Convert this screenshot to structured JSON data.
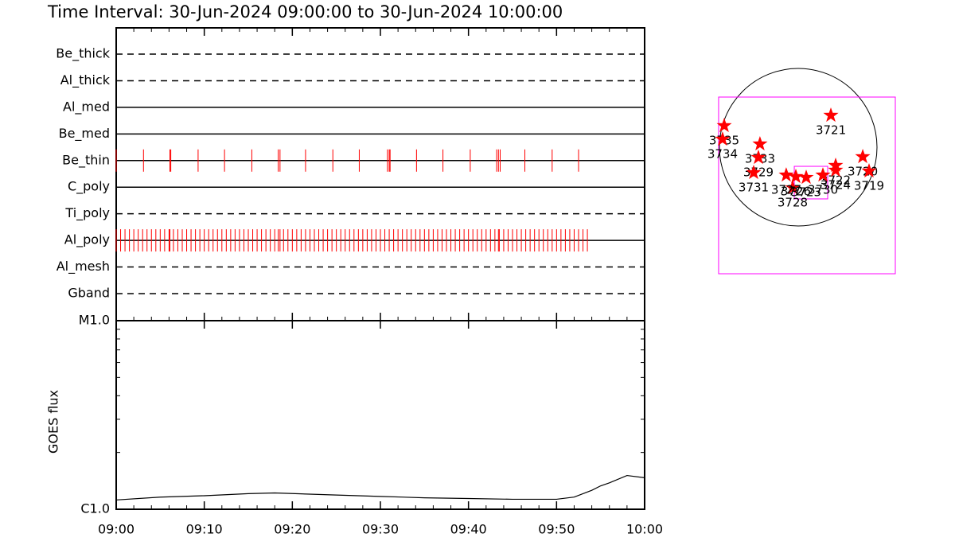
{
  "chart_data": [
    {
      "type": "timeline",
      "title": "Time Interval: 30-Jun-2024 09:00:00 to 30-Jun-2024 10:00:00",
      "xlim": [
        0,
        60
      ],
      "color": "#ff0000",
      "rows": [
        {
          "name": "Be_thick",
          "style": "dashed",
          "obs": []
        },
        {
          "name": "Al_thick",
          "style": "dashed",
          "obs": []
        },
        {
          "name": "Al_med",
          "style": "solid",
          "obs": []
        },
        {
          "name": "Be_med",
          "style": "solid",
          "obs": []
        },
        {
          "name": "Be_thin",
          "style": "solid",
          "obs": [
            0,
            3.1,
            6.1,
            6.2,
            9.3,
            12.3,
            15.4,
            18.4,
            18.6,
            21.5,
            24.6,
            27.6,
            30.8,
            31.0,
            31.1,
            34.1,
            37.1,
            40.2,
            43.2,
            43.4,
            43.6,
            46.4,
            49.5,
            52.5
          ]
        },
        {
          "name": "C_poly",
          "style": "solid",
          "obs": []
        },
        {
          "name": "Ti_poly",
          "style": "dashed",
          "obs": []
        },
        {
          "name": "Al_poly",
          "style": "solid",
          "obs": [
            0,
            0.5,
            1,
            1.5,
            2,
            2.5,
            3,
            3.5,
            4,
            4.5,
            5,
            5.5,
            6,
            6.1,
            6.5,
            7,
            7.5,
            8,
            8.5,
            9,
            9.5,
            10,
            10.5,
            11,
            11.5,
            12,
            12.5,
            13,
            13.5,
            14,
            14.5,
            15,
            15.5,
            16,
            16.5,
            17,
            17.5,
            18,
            18.4,
            18.6,
            19,
            19.5,
            20,
            20.5,
            21,
            21.5,
            22,
            22.5,
            23,
            23.5,
            24,
            24.5,
            25,
            25.5,
            26,
            26.5,
            27,
            27.5,
            28,
            28.5,
            29,
            29.5,
            30,
            30.5,
            31,
            31.5,
            32,
            32.5,
            33,
            33.5,
            34,
            34.5,
            35,
            35.5,
            36,
            36.5,
            37,
            37.5,
            38,
            38.5,
            39,
            39.5,
            40,
            40.5,
            41,
            41.5,
            42,
            42.5,
            43,
            43.4,
            43.5,
            44,
            44.5,
            45,
            45.5,
            46,
            46.5,
            47,
            47.5,
            48,
            48.5,
            49,
            49.5,
            50,
            50.5,
            51,
            51.5,
            52,
            52.5,
            53,
            53.5
          ]
        },
        {
          "name": "Al_mesh",
          "style": "dashed",
          "obs": []
        },
        {
          "name": "Gband",
          "style": "dashed",
          "obs": []
        }
      ]
    },
    {
      "type": "line",
      "ylabel": "GOES flux",
      "log": true,
      "color": "#000000",
      "x": [
        0,
        5,
        10,
        15,
        18,
        25,
        30,
        35,
        40,
        45,
        50,
        52,
        54,
        55,
        56,
        58,
        60
      ],
      "values": [
        1.12e-06,
        1.16e-06,
        1.18e-06,
        1.21e-06,
        1.22e-06,
        1.19e-06,
        1.17e-06,
        1.15e-06,
        1.14e-06,
        1.13e-06,
        1.13e-06,
        1.16e-06,
        1.26e-06,
        1.33e-06,
        1.38e-06,
        1.51e-06,
        1.47e-06
      ],
      "xlim": [
        0,
        60
      ],
      "xticks": [
        {
          "value": 0,
          "label": "09:00"
        },
        {
          "value": 10,
          "label": "09:10"
        },
        {
          "value": 20,
          "label": "09:20"
        },
        {
          "value": 30,
          "label": "09:30"
        },
        {
          "value": 40,
          "label": "09:40"
        },
        {
          "value": 50,
          "label": "09:50"
        },
        {
          "value": 60,
          "label": "10:00"
        }
      ],
      "ylim": [
        1e-06,
        1e-05
      ],
      "yticks": [
        {
          "value": 1e-06,
          "label": "C1.0"
        },
        {
          "value": 1e-05,
          "label": "M1.0"
        }
      ]
    },
    {
      "type": "map",
      "radius": 960,
      "color": "#ff0000",
      "box_color": "#ff00ff",
      "fov": [
        [
          -970,
          611,
          1183,
          -1542
        ],
        [
          -48,
          -233,
          359,
          -630
        ]
      ],
      "regions": [
        {
          "name": "3721",
          "x": 398,
          "y": 388
        },
        {
          "name": "3735",
          "x": -902,
          "y": 262
        },
        {
          "name": "3734",
          "x": -922,
          "y": 97
        },
        {
          "name": "3733",
          "x": -466,
          "y": 39
        },
        {
          "name": "3729",
          "x": -485,
          "y": -126
        },
        {
          "name": "3731",
          "x": -543,
          "y": -310
        },
        {
          "name": "3720",
          "x": 786,
          "y": -116
        },
        {
          "name": "3719",
          "x": 863,
          "y": -291
        },
        {
          "name": "3722",
          "x": 456,
          "y": -223
        },
        {
          "name": "3724",
          "x": 456,
          "y": -281
        },
        {
          "name": "3730",
          "x": 301,
          "y": -340
        },
        {
          "name": "3728",
          "x": -68,
          "y": -495
        },
        {
          "name": "3727",
          "x": -146,
          "y": -340
        },
        {
          "name": "3726",
          "x": -29,
          "y": -359
        },
        {
          "name": "3723",
          "x": 97,
          "y": -369
        }
      ]
    }
  ]
}
